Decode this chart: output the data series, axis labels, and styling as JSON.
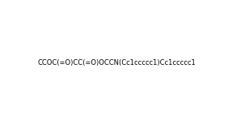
{
  "smiles": "CCOC(=O)CC(=O)OCCN(Cc1ccccc1)Cc1ccccc1",
  "title": "",
  "background_color": "#ffffff",
  "figsize": [
    2.82,
    1.53
  ],
  "dpi": 100
}
